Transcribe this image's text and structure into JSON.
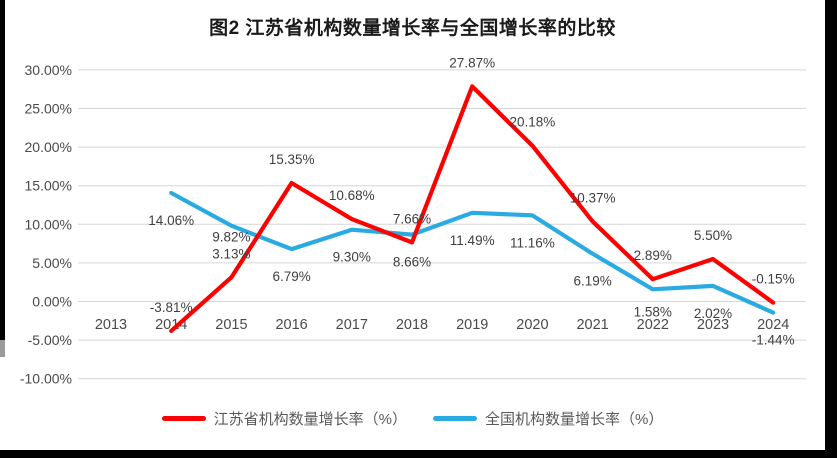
{
  "chart_data": {
    "type": "line",
    "title": "图2  江苏省机构数量增长率与全国增长率的比较",
    "categories": [
      "2013",
      "2014",
      "2015",
      "2016",
      "2017",
      "2018",
      "2019",
      "2020",
      "2021",
      "2022",
      "2023",
      "2024"
    ],
    "series": [
      {
        "name": "江苏省机构数量增长率（%）",
        "color": "#FE0000",
        "values": [
          null,
          -3.81,
          3.13,
          15.35,
          10.68,
          7.66,
          27.87,
          20.18,
          10.37,
          2.89,
          5.5,
          -0.15
        ]
      },
      {
        "name": "全国机构数量增长率（%）",
        "color": "#29ABE2",
        "values": [
          null,
          14.06,
          9.82,
          6.79,
          9.3,
          8.66,
          11.49,
          11.16,
          6.19,
          1.58,
          2.02,
          -1.44
        ]
      }
    ],
    "xlabel": "",
    "ylabel": "",
    "ylim": [
      -10,
      30
    ],
    "ytick_step": 5,
    "ytick_labels": [
      "-10.00%",
      "-5.00%",
      "0.00%",
      "5.00%",
      "10.00%",
      "15.00%",
      "20.00%",
      "25.00%",
      "30.00%"
    ],
    "data_labels": true,
    "grid": true,
    "legend_position": "bottom",
    "colors": {
      "gridline": "#D6D6D6",
      "axis_text": "#4a4a4a",
      "data_label_text": "#3f3f3f",
      "title_text": "#1a1a1a",
      "frame": "#000000"
    }
  }
}
